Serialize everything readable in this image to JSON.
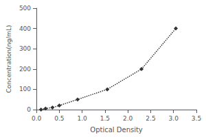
{
  "chart_data": {
    "type": "line",
    "xlabel": "Optical Density",
    "ylabel": "Concentration(ng/mL)",
    "x": [
      0.1,
      0.2,
      0.35,
      0.5,
      0.9,
      1.55,
      2.3,
      3.05
    ],
    "values": [
      0,
      5,
      10,
      20,
      50,
      100,
      200,
      400
    ],
    "xlim": [
      0,
      3.5
    ],
    "ylim": [
      0,
      500
    ],
    "xticks": [
      {
        "value": 0,
        "label": "0.0"
      },
      0.5,
      {
        "value": 1,
        "label": "1.0"
      },
      1.5,
      {
        "value": 2,
        "label": "2.0"
      },
      2.5,
      {
        "value": 3,
        "label": "3.0"
      },
      3.5
    ],
    "yticks": [
      0,
      100,
      200,
      300,
      400,
      500
    ],
    "color": "#333333",
    "marker": "diamond",
    "line_style": "dotted",
    "grid": false
  }
}
